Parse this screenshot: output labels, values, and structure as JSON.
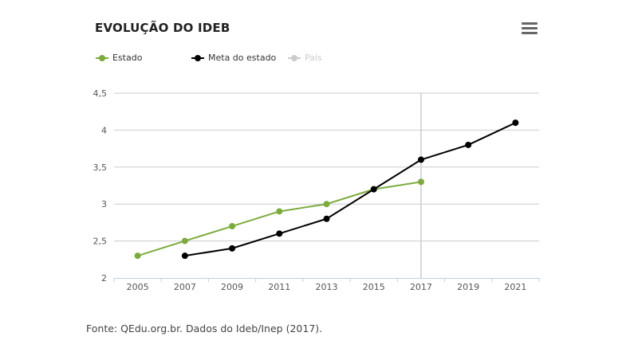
{
  "header": {
    "title": "EVOLUÇÃO DO IDEB",
    "menu_icon": "hamburger-menu-icon"
  },
  "legend": [
    {
      "label": "Estado",
      "color": "#7cab3d",
      "visible": true
    },
    {
      "label": "Meta do estado",
      "color": "#000000",
      "visible": true
    },
    {
      "label": "País",
      "color": "#cccccc",
      "visible": false
    }
  ],
  "chart_data": {
    "type": "line",
    "title": "EVOLUÇÃO DO IDEB",
    "categories": [
      "2005",
      "2007",
      "2009",
      "2011",
      "2013",
      "2015",
      "2017",
      "2019",
      "2021"
    ],
    "yticks": [
      "2",
      "2,5",
      "3",
      "3,5",
      "4",
      "4,5"
    ],
    "ylim": [
      2,
      4.5
    ],
    "xlabel": "",
    "ylabel": "",
    "grid": true,
    "crosshair_category": "2017",
    "series": [
      {
        "name": "Estado",
        "color": "#7cab3d",
        "values": [
          2.3,
          2.5,
          2.7,
          2.9,
          3.0,
          3.2,
          3.3,
          null,
          null
        ]
      },
      {
        "name": "Meta do estado",
        "color": "#000000",
        "values": [
          null,
          2.3,
          2.4,
          2.6,
          2.8,
          3.2,
          3.6,
          3.8,
          4.1
        ]
      }
    ]
  },
  "footer": {
    "source": "Fonte: QEdu.org.br. Dados do Ideb/Inep (2017)."
  }
}
